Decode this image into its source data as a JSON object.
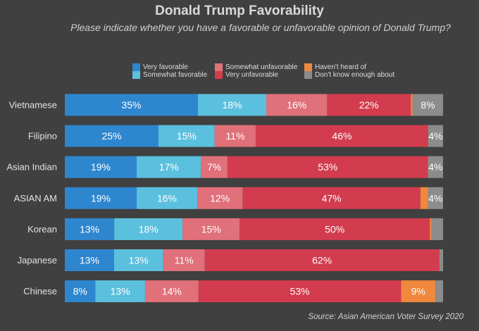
{
  "chart_data": {
    "type": "bar",
    "orientation": "horizontal",
    "stacked": true,
    "title": "Donald Trump Favorability",
    "subtitle": "Please indicate whether you have a favorable or unfavorable opinion of Donald Trump?",
    "source": "Source: Asian American Voter Survey 2020",
    "xlim": [
      0,
      100
    ],
    "grid": false,
    "legend_position": "top",
    "categories": [
      "Vietnamese",
      "Filipino",
      "Asian Indian",
      "ASIAN AM",
      "Korean",
      "Japanese",
      "Chinese"
    ],
    "series": [
      {
        "name": "Very favorable",
        "color": "#2e86cf",
        "values": [
          35,
          25,
          19,
          19,
          13,
          13,
          8
        ],
        "labels": [
          "35%",
          "25%",
          "19%",
          "19%",
          "13%",
          "13%",
          "8%"
        ]
      },
      {
        "name": "Somewhat favorable",
        "color": "#5bc0de",
        "values": [
          18,
          15,
          17,
          16,
          18,
          13,
          13
        ],
        "labels": [
          "18%",
          "15%",
          "17%",
          "16%",
          "18%",
          "13%",
          "13%"
        ]
      },
      {
        "name": "Somewhat unfavorable",
        "color": "#e0707a",
        "values": [
          16,
          11,
          7,
          12,
          15,
          11,
          14
        ],
        "labels": [
          "16%",
          "11%",
          "7%",
          "12%",
          "15%",
          "11%",
          "14%"
        ]
      },
      {
        "name": "Very unfavorable",
        "color": "#d23c4e",
        "values": [
          22,
          46,
          53,
          47,
          50,
          62,
          53
        ],
        "labels": [
          "22%",
          "46%",
          "53%",
          "47%",
          "50%",
          "62%",
          "53%"
        ]
      },
      {
        "name": "Haven't heard of",
        "color": "#f0883e",
        "values": [
          0.5,
          0,
          0,
          2,
          0.5,
          0,
          9
        ],
        "labels": [
          "",
          "",
          "",
          "",
          "",
          "",
          "9%"
        ]
      },
      {
        "name": "Don't know enough about",
        "color": "#8c8c8c",
        "values": [
          8,
          4,
          4,
          4,
          3,
          1,
          2
        ],
        "labels": [
          "8%",
          "4%",
          "4%",
          "4%",
          "",
          "",
          ""
        ]
      }
    ]
  }
}
